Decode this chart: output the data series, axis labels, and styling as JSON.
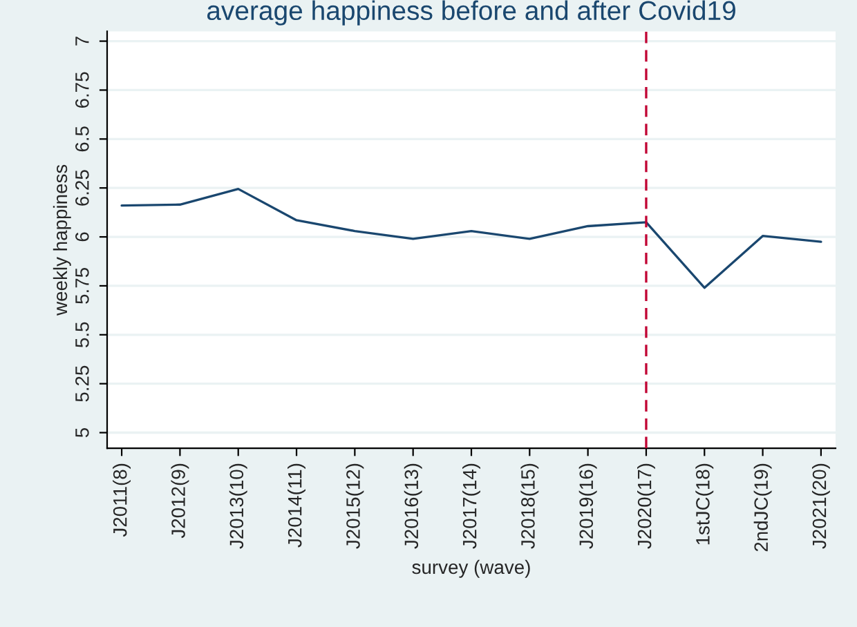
{
  "chart_data": {
    "type": "line",
    "title": "average happiness before and after Covid19",
    "xlabel": "survey (wave)",
    "ylabel": "weekly happiness",
    "categories": [
      "J2011(8)",
      "J2012(9)",
      "J2013(10)",
      "J2014(11)",
      "J2015(12)",
      "J2016(13)",
      "J2017(14)",
      "J2018(15)",
      "J2019(16)",
      "J2020(17)",
      "1stJC(18)",
      "2ndJC(19)",
      "J2021(20)"
    ],
    "series": [
      {
        "color": "#1a476f",
        "values": [
          6.16,
          6.165,
          6.245,
          6.085,
          6.03,
          5.99,
          6.03,
          5.99,
          6.055,
          6.075,
          5.74,
          6.005,
          5.975
        ]
      }
    ],
    "ylim": [
      4.92,
      7.05
    ],
    "yticks": [
      5,
      5.25,
      5.5,
      5.75,
      6,
      6.25,
      6.5,
      6.75,
      7
    ],
    "ref_lines": [
      {
        "axis": "x",
        "value": "J2020(17)",
        "color": "#c10534",
        "line_style": "dashed"
      }
    ],
    "grid": "y",
    "marker": "none",
    "line_style": "solid",
    "legend": false
  }
}
